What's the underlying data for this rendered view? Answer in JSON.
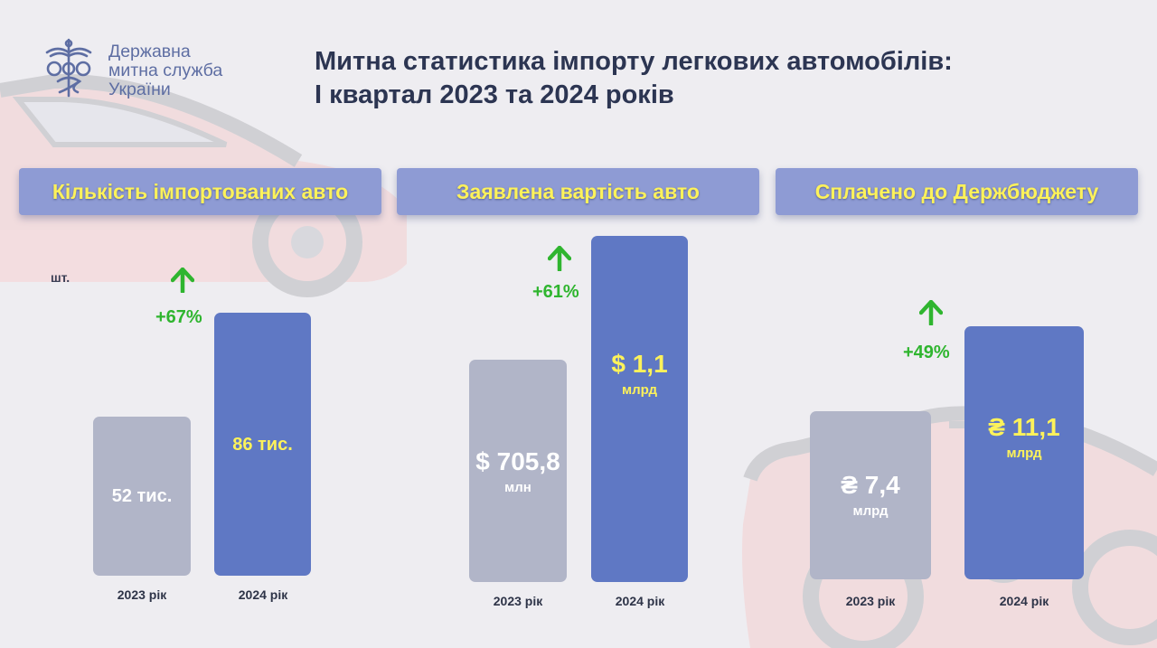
{
  "logo": {
    "lines": [
      "Державна",
      "митна служба",
      "України"
    ]
  },
  "title": {
    "line1": "Митна статистика імпорту легкових автомобілів:",
    "line2": "І квартал 2023 та 2024 років"
  },
  "colors": {
    "background": "#eeedf1",
    "header_bg": "#8e9bd4",
    "header_text": "#fdf25a",
    "bar_2023": "#b1b5c8",
    "bar_2024": "#5f78c4",
    "growth": "#2fb52f"
  },
  "panels": [
    {
      "header": "Кількість імпортованих авто",
      "unit_note": "шт.",
      "growth": "+67%",
      "bars": [
        {
          "year_label": "2023 рік",
          "value_label": "52 тис.",
          "unit_label": ""
        },
        {
          "year_label": "2024 рік",
          "value_label": "86 тис.",
          "unit_label": ""
        }
      ]
    },
    {
      "header": "Заявлена вартість авто",
      "growth": "+61%",
      "bars": [
        {
          "year_label": "2023 рік",
          "value_label": "$ 705,8",
          "unit_label": "млн"
        },
        {
          "year_label": "2024 рік",
          "value_label": "$ 1,1",
          "unit_label": "млрд"
        }
      ]
    },
    {
      "header": "Сплачено до Держбюджету",
      "growth": "+49%",
      "bars": [
        {
          "year_label": "2023 рік",
          "value_label": "₴ 7,4",
          "unit_label": "млрд"
        },
        {
          "year_label": "2024 рік",
          "value_label": "₴ 11,1",
          "unit_label": "млрд"
        }
      ]
    }
  ],
  "chart_data": [
    {
      "type": "bar",
      "title": "Кількість імпортованих авто",
      "ylabel": "шт.",
      "categories": [
        "2023 рік",
        "2024 рік"
      ],
      "values": [
        52000,
        86000
      ],
      "ylim": [
        0,
        100000
      ],
      "growth": "+67%"
    },
    {
      "type": "bar",
      "title": "Заявлена вартість авто",
      "categories": [
        "2023 рік",
        "2024 рік"
      ],
      "values": [
        705.8,
        1100
      ],
      "ylim": [
        0,
        1300
      ],
      "growth": "+61%"
    },
    {
      "type": "bar",
      "title": "Сплачено до Держбюджету",
      "categories": [
        "2023 рік",
        "2024 рік"
      ],
      "values": [
        7.4,
        11.1
      ],
      "ylim": [
        0,
        13.5
      ],
      "growth": "+49%"
    }
  ]
}
